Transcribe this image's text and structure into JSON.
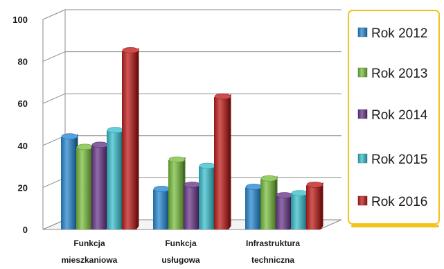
{
  "chart_data": {
    "type": "bar",
    "categories": [
      [
        "Funkcja",
        "mieszkaniowa"
      ],
      [
        "Funkcja",
        "usługowa"
      ],
      [
        "Infrastruktura",
        "techniczna"
      ]
    ],
    "series": [
      {
        "name": "Rok 2012",
        "color": "#2a8ad2",
        "values": [
          44,
          19,
          20
        ]
      },
      {
        "name": "Rok 2013",
        "color": "#7cc041",
        "values": [
          39,
          33,
          24
        ]
      },
      {
        "name": "Rok 2014",
        "color": "#6b3a8c",
        "values": [
          40,
          21,
          16
        ]
      },
      {
        "name": "Rok 2015",
        "color": "#3dc0cf",
        "values": [
          47,
          30,
          17
        ]
      },
      {
        "name": "Rok 2016",
        "color": "#c0201e",
        "values": [
          85,
          63,
          21
        ]
      }
    ],
    "yticks": [
      0,
      20,
      40,
      60,
      80,
      100
    ],
    "ylim": [
      0,
      100
    ],
    "grid": true,
    "legend_position": "right",
    "legend_border_color": "#f2c318"
  }
}
